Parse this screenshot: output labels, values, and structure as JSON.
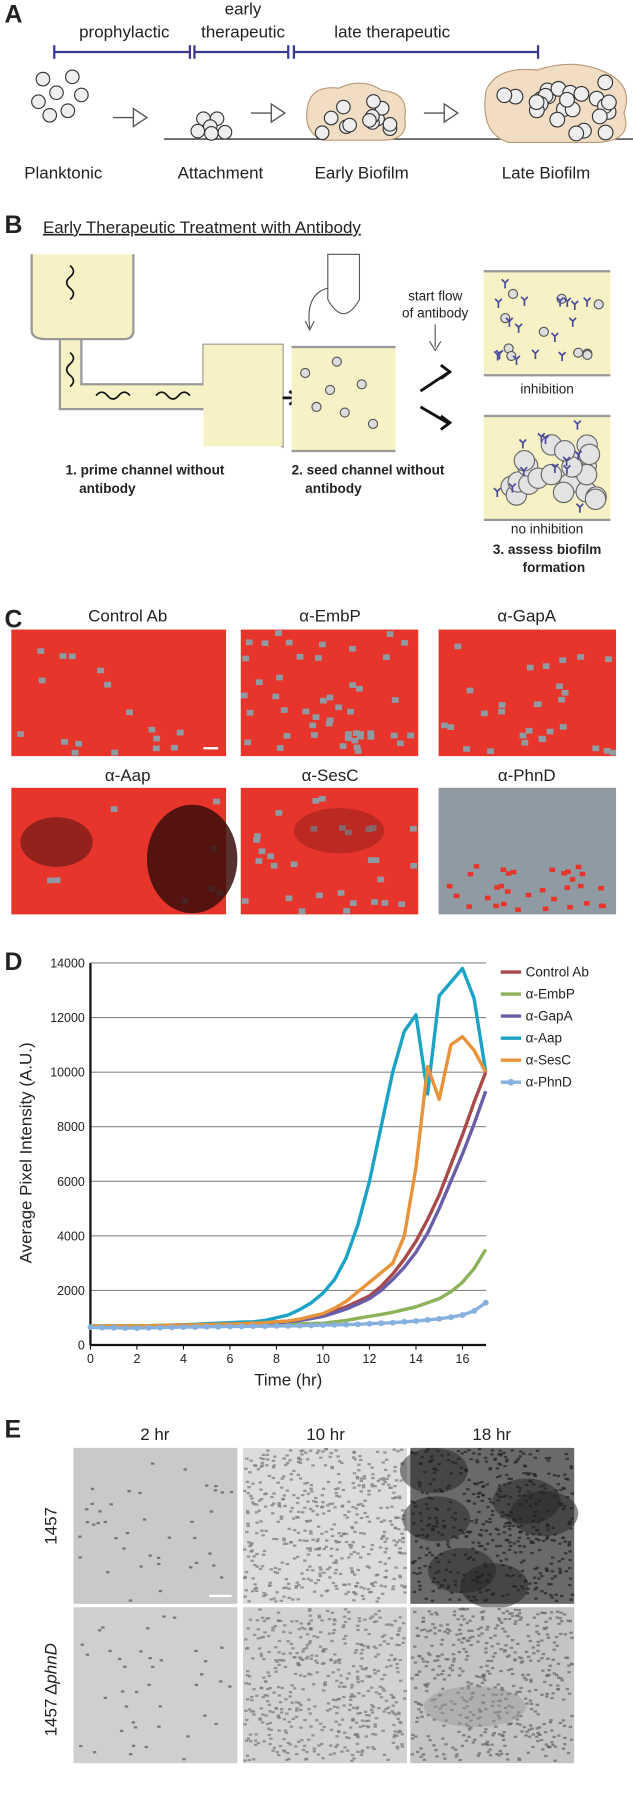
{
  "panel_a": {
    "letter": "A",
    "phases": [
      "prophylactic",
      "early",
      "therapeutic",
      "late therapeutic"
    ],
    "stages": [
      "Planktonic",
      "Attachment",
      "Early Biofilm",
      "Late Biofilm"
    ]
  },
  "panel_b": {
    "letter": "B",
    "title": "Early Therapeutic Treatment with Antibody",
    "step1": [
      "1. prime channel without",
      "antibody"
    ],
    "step2": [
      "2. seed channel without",
      "antibody"
    ],
    "flow": [
      "start flow",
      "of antibody"
    ],
    "inhibition": "inhibition",
    "no_inhibition": "no inhibition",
    "step3": [
      "3. assess biofilm",
      "formation"
    ]
  },
  "panel_c": {
    "letter": "C",
    "labels": [
      "Control Ab",
      "α-EmbP",
      "α-GapA",
      "α-Aap",
      "α-SesC",
      "α-PhnD"
    ]
  },
  "panel_d": {
    "letter": "D"
  },
  "chart_data": {
    "type": "line",
    "x_label": "Time (hr)",
    "y_label": "Average Pixel Intensity (A.U.)",
    "x": [
      0,
      0.5,
      1,
      1.5,
      2,
      2.5,
      3,
      3.5,
      4,
      4.5,
      5,
      5.5,
      6,
      6.5,
      7,
      7.5,
      8,
      8.5,
      9,
      9.5,
      10,
      10.5,
      11,
      11.5,
      12,
      12.5,
      13,
      13.5,
      14,
      14.5,
      15,
      15.5,
      16,
      16.5,
      17
    ],
    "xlim": [
      0,
      17.5
    ],
    "xticks": [
      0,
      2,
      4,
      6,
      8,
      10,
      12,
      14,
      16
    ],
    "ylim": [
      0,
      14000
    ],
    "yticks": [
      0,
      2000,
      4000,
      6000,
      8000,
      10000,
      12000,
      14000
    ],
    "grid": true,
    "legend": "right",
    "series": [
      {
        "name": "Control Ab",
        "color": "#a94a4a",
        "values": [
          700,
          700,
          700,
          700,
          700,
          710,
          720,
          730,
          740,
          750,
          760,
          770,
          780,
          790,
          800,
          820,
          850,
          880,
          920,
          1000,
          1100,
          1250,
          1400,
          1600,
          1800,
          2150,
          2600,
          3150,
          3800,
          4600,
          5500,
          6600,
          7700,
          8900,
          10000
        ]
      },
      {
        "name": "α-EmbP",
        "color": "#8db35a",
        "values": [
          700,
          700,
          700,
          700,
          710,
          710,
          720,
          720,
          730,
          730,
          740,
          740,
          750,
          750,
          760,
          760,
          770,
          770,
          780,
          790,
          800,
          850,
          900,
          980,
          1050,
          1120,
          1200,
          1300,
          1400,
          1550,
          1700,
          1950,
          2300,
          2800,
          3500
        ]
      },
      {
        "name": "α-GapA",
        "color": "#6a5ea8",
        "values": [
          650,
          650,
          660,
          660,
          670,
          680,
          690,
          700,
          710,
          720,
          730,
          740,
          750,
          760,
          780,
          800,
          820,
          850,
          900,
          970,
          1050,
          1180,
          1320,
          1500,
          1700,
          2000,
          2400,
          2850,
          3400,
          4100,
          5000,
          6000,
          7000,
          8100,
          9300
        ]
      },
      {
        "name": "α-Aap",
        "color": "#1aa3c4",
        "values": [
          650,
          640,
          640,
          650,
          660,
          680,
          700,
          720,
          740,
          760,
          780,
          800,
          820,
          840,
          850,
          900,
          1000,
          1100,
          1300,
          1550,
          1900,
          2400,
          3200,
          4400,
          6000,
          8000,
          10000,
          11500,
          12100,
          9200,
          12800,
          13300,
          13800,
          12700,
          10000
        ]
      },
      {
        "name": "α-SesC",
        "color": "#e8923a",
        "values": [
          680,
          680,
          690,
          690,
          700,
          700,
          710,
          720,
          730,
          740,
          750,
          760,
          770,
          780,
          800,
          820,
          850,
          880,
          950,
          1050,
          1150,
          1350,
          1600,
          1950,
          2300,
          2650,
          3000,
          4000,
          6500,
          10200,
          9000,
          11000,
          11300,
          10800,
          10000
        ]
      },
      {
        "name": "α-PhnD",
        "color": "#86b0dd",
        "markers": true,
        "values": [
          650,
          640,
          630,
          620,
          620,
          630,
          640,
          650,
          660,
          660,
          670,
          670,
          680,
          680,
          690,
          690,
          700,
          700,
          710,
          720,
          730,
          740,
          750,
          760,
          780,
          800,
          820,
          850,
          880,
          920,
          960,
          1020,
          1100,
          1250,
          1550
        ]
      }
    ]
  },
  "panel_e": {
    "letter": "E",
    "columns": [
      "2 hr",
      "10 hr",
      "18 hr"
    ],
    "row1": "1457",
    "row2": [
      "1457 Δ",
      "phnD"
    ]
  }
}
